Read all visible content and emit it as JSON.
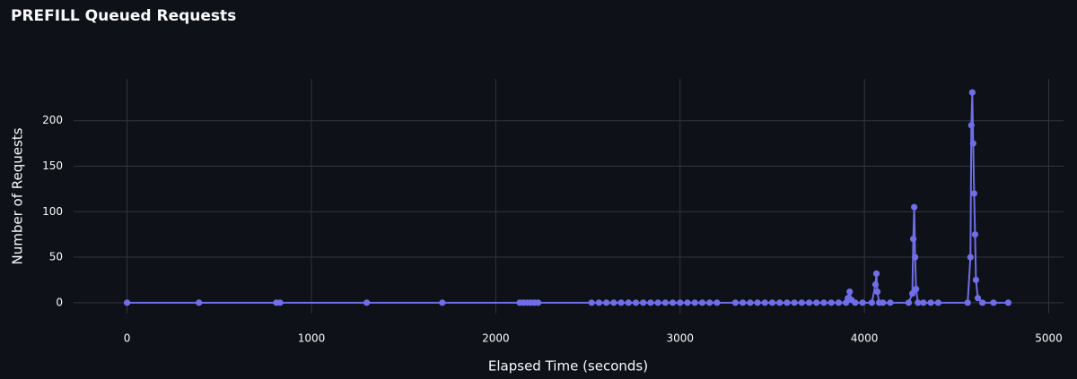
{
  "chart_data": {
    "type": "line",
    "title": "PREFILL Queued Requests",
    "x_label": "Elapsed Time (seconds)",
    "y_label": "Number of Requests",
    "xlim": [
      -290,
      5080
    ],
    "ylim": [
      -12,
      246
    ],
    "xticks": [
      0,
      1000,
      2000,
      3000,
      4000,
      5000
    ],
    "yticks": [
      0,
      50,
      100,
      150,
      200
    ],
    "grid": true,
    "x": [
      0,
      390,
      810,
      830,
      1300,
      1710,
      2130,
      2150,
      2170,
      2190,
      2210,
      2230,
      2520,
      2560,
      2600,
      2640,
      2680,
      2720,
      2760,
      2800,
      2840,
      2880,
      2920,
      2960,
      3000,
      3040,
      3080,
      3120,
      3160,
      3200,
      3300,
      3340,
      3380,
      3420,
      3460,
      3500,
      3540,
      3580,
      3620,
      3660,
      3700,
      3740,
      3780,
      3820,
      3860,
      3900,
      3910,
      3920,
      3930,
      3950,
      3990,
      4040,
      4060,
      4065,
      4070,
      4080,
      4100,
      4140,
      4240,
      4260,
      4265,
      4270,
      4275,
      4280,
      4290,
      4320,
      4360,
      4400,
      4560,
      4575,
      4580,
      4585,
      4590,
      4595,
      4600,
      4605,
      4615,
      4640,
      4700,
      4780
    ],
    "series": [
      {
        "color": "#6f6ee8",
        "values": [
          0,
          0,
          0,
          0,
          0,
          0,
          0,
          0,
          0,
          0,
          0,
          0,
          0,
          0,
          0,
          0,
          0,
          0,
          0,
          0,
          0,
          0,
          0,
          0,
          0,
          0,
          0,
          0,
          0,
          0,
          0,
          0,
          0,
          0,
          0,
          0,
          0,
          0,
          0,
          0,
          0,
          0,
          0,
          0,
          0,
          0,
          5,
          12,
          3,
          0,
          0,
          0,
          20,
          32,
          12,
          0,
          0,
          0,
          0,
          10,
          70,
          105,
          50,
          15,
          0,
          0,
          0,
          0,
          0,
          50,
          195,
          231,
          175,
          120,
          75,
          25,
          5,
          0,
          0,
          0
        ]
      }
    ]
  }
}
